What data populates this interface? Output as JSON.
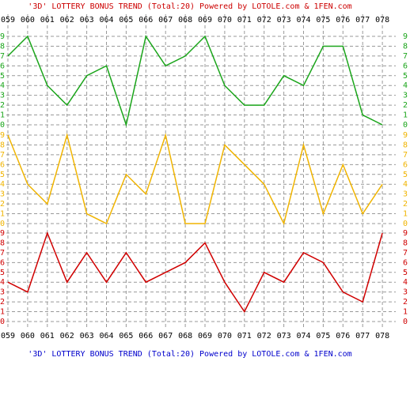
{
  "chart_data": [
    {
      "type": "line",
      "title": "'3D' LOTTERY BONUS TREND (Total:20)  Powered by LOTOLE.com & 1FEN.com",
      "categories": [
        "059",
        "060",
        "061",
        "062",
        "063",
        "064",
        "065",
        "066",
        "067",
        "068",
        "069",
        "070",
        "071",
        "072",
        "073",
        "074",
        "075",
        "076",
        "077",
        "078"
      ],
      "values": [
        7,
        9,
        4,
        2,
        5,
        6,
        0,
        9,
        6,
        7,
        9,
        4,
        2,
        2,
        5,
        4,
        8,
        8,
        1,
        0
      ],
      "color": "#1aa51a",
      "ylim": [
        0,
        9
      ],
      "yticks": [
        0,
        1,
        2,
        3,
        4,
        5,
        6,
        7,
        8,
        9
      ],
      "grid": true
    },
    {
      "type": "line",
      "categories": [
        "059",
        "060",
        "061",
        "062",
        "063",
        "064",
        "065",
        "066",
        "067",
        "068",
        "069",
        "070",
        "071",
        "072",
        "073",
        "074",
        "075",
        "076",
        "077",
        "078"
      ],
      "values": [
        9,
        4,
        2,
        9,
        1,
        0,
        5,
        3,
        9,
        0,
        0,
        8,
        6,
        4,
        0,
        8,
        1,
        6,
        1,
        4
      ],
      "color": "#f0b400",
      "ylim": [
        0,
        9
      ],
      "yticks": [
        0,
        1,
        2,
        3,
        4,
        5,
        6,
        7,
        8,
        9
      ],
      "grid": true
    },
    {
      "type": "line",
      "title": "'3D' LOTTERY BONUS TREND (Total:20)  Powered by LOTOLE.com & 1FEN.com",
      "categories": [
        "059",
        "060",
        "061",
        "062",
        "063",
        "064",
        "065",
        "066",
        "067",
        "068",
        "069",
        "070",
        "071",
        "072",
        "073",
        "074",
        "075",
        "076",
        "077",
        "078"
      ],
      "values": [
        4,
        3,
        9,
        4,
        7,
        4,
        7,
        4,
        5,
        6,
        8,
        4,
        1,
        5,
        4,
        7,
        6,
        3,
        2,
        9
      ],
      "color": "#d00000",
      "ylim": [
        0,
        9
      ],
      "yticks": [
        0,
        1,
        2,
        3,
        4,
        5,
        6,
        7,
        8,
        9
      ],
      "grid": true
    }
  ]
}
